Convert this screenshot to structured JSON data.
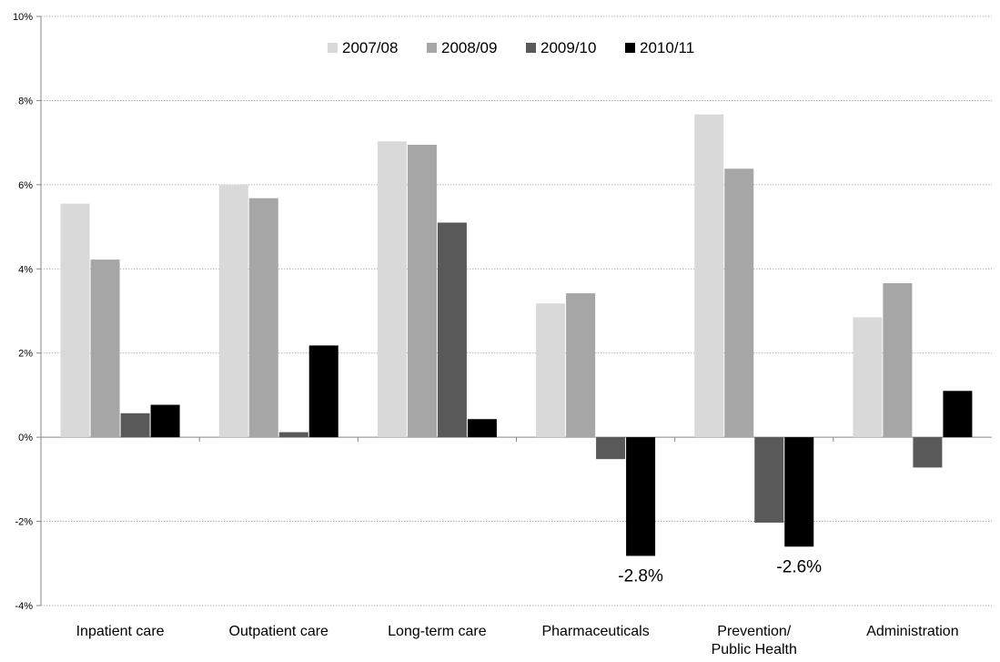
{
  "chart_data": {
    "type": "bar",
    "categories": [
      "Inpatient care",
      "Outpatient care",
      "Long-term care",
      "Pharmaceuticals",
      "Prevention/Public Health",
      "Administration"
    ],
    "series": [
      {
        "name": "2007/08",
        "color": "#d9d9d9",
        "values": [
          5.55,
          6.0,
          7.03,
          3.18,
          7.67,
          2.85
        ]
      },
      {
        "name": "2008/09",
        "color": "#a6a6a6",
        "values": [
          4.22,
          5.68,
          6.95,
          3.42,
          6.38,
          3.66
        ]
      },
      {
        "name": "2009/10",
        "color": "#595959",
        "values": [
          0.57,
          0.12,
          5.1,
          -0.52,
          -2.03,
          -0.72
        ]
      },
      {
        "name": "2010/11",
        "color": "#000000",
        "values": [
          0.77,
          2.18,
          0.43,
          -2.82,
          -2.6,
          1.1
        ]
      }
    ],
    "y_ticks": [
      "10%",
      "8%",
      "6%",
      "4%",
      "2%",
      "0%",
      "-2%",
      "-4%"
    ],
    "ylim": [
      -4,
      10
    ],
    "grid": true,
    "legend": "top-center",
    "annotations": [
      {
        "text": "-2.8%",
        "category": "Pharmaceuticals"
      },
      {
        "text": "-2.6%",
        "category": "Prevention/Public Health"
      }
    ]
  }
}
